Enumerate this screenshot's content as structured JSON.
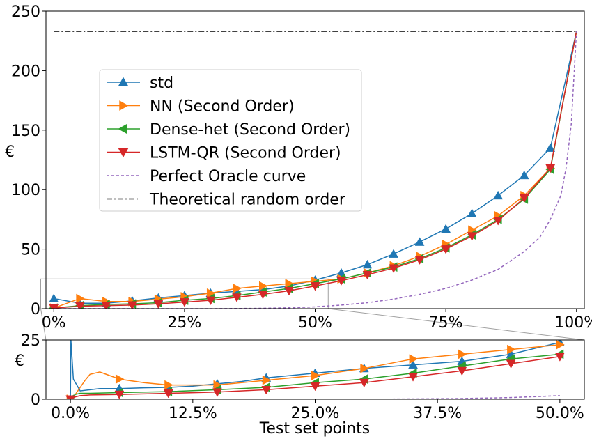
{
  "chart_data": [
    {
      "type": "line",
      "ylabel": "€",
      "xlabel": "",
      "xlim": [
        -1.5,
        101.5
      ],
      "ylim": [
        0,
        250
      ],
      "x_ticks": [
        0,
        25,
        50,
        75,
        100
      ],
      "x_tick_labels": [
        "0%",
        "25%",
        "50%",
        "75%",
        "100%"
      ],
      "y_ticks": [
        0,
        50,
        100,
        150,
        200,
        250
      ],
      "y_tick_labels": [
        "0",
        "50",
        "100",
        "150",
        "200",
        "250"
      ],
      "grid": false,
      "legend_position": "upper-left",
      "zoom_box": {
        "x": [
          -2.5,
          52.5
        ],
        "y": [
          0,
          25
        ]
      },
      "series": [
        {
          "name": "std",
          "color": "#1f77b4",
          "marker": "triangle-up",
          "x": [
            0,
            5,
            10,
            15,
            20,
            25,
            30,
            35,
            40,
            45,
            50,
            55,
            60,
            65,
            70,
            75,
            80,
            85,
            90,
            95,
            100
          ],
          "y": [
            8.5,
            4.5,
            4.5,
            6.5,
            9,
            11,
            13,
            14.5,
            16,
            19,
            24,
            30,
            37,
            46,
            56,
            67,
            80,
            95,
            112,
            135,
            233
          ]
        },
        {
          "name": "NN (Second Order)",
          "color": "#ff7f0e",
          "marker": "triangle-right",
          "x": [
            0,
            5,
            10,
            15,
            20,
            25,
            30,
            35,
            40,
            45,
            50,
            55,
            60,
            65,
            70,
            75,
            80,
            85,
            90,
            95,
            100
          ],
          "y": [
            0.5,
            8.5,
            6,
            6,
            8,
            10,
            13,
            17,
            19,
            21,
            23,
            25,
            30,
            36,
            44,
            54,
            66,
            78,
            95,
            118,
            233
          ]
        },
        {
          "name": "Dense-het (Second Order)",
          "color": "#2ca02c",
          "marker": "triangle-left",
          "x": [
            0,
            5,
            10,
            15,
            20,
            25,
            30,
            35,
            40,
            45,
            50,
            55,
            60,
            65,
            70,
            75,
            80,
            85,
            90,
            95,
            100
          ],
          "y": [
            0.5,
            2.5,
            3.5,
            4,
            5,
            7,
            8.5,
            11,
            14,
            17,
            21,
            25,
            30,
            35,
            42,
            51,
            62,
            75,
            92,
            117,
            233
          ]
        },
        {
          "name": "LSTM-QR (Second Order)",
          "color": "#d62728",
          "marker": "triangle-down",
          "x": [
            0,
            5,
            10,
            15,
            20,
            25,
            30,
            35,
            40,
            45,
            50,
            55,
            60,
            65,
            70,
            75,
            80,
            85,
            90,
            95,
            100
          ],
          "y": [
            0.5,
            2,
            2.5,
            3,
            4,
            5.5,
            7,
            9.5,
            12,
            15,
            19,
            23.5,
            28.5,
            34,
            41,
            50,
            61,
            74,
            93,
            118,
            233
          ]
        },
        {
          "name": "Perfect Oracle curve",
          "color": "#9467bd",
          "marker": "none",
          "x": [
            0,
            10,
            20,
            30,
            40,
            45,
            50,
            55,
            60,
            65,
            70,
            75,
            80,
            85,
            90,
            93,
            95,
            97,
            98,
            99,
            100
          ],
          "y": [
            0,
            0,
            0,
            0,
            0.3,
            0.7,
            1.5,
            3,
            5,
            8,
            12,
            17,
            24,
            33,
            48,
            60,
            75,
            95,
            118,
            155,
            233
          ]
        },
        {
          "name": "Theoretical random order",
          "color": "#000000",
          "marker": "none",
          "x": [
            0,
            100
          ],
          "y": [
            233,
            233
          ]
        }
      ]
    },
    {
      "type": "line",
      "ylabel": "€",
      "xlabel": "Test set points",
      "xlim": [
        -2.5,
        52.5
      ],
      "ylim": [
        0,
        25
      ],
      "x_ticks": [
        0,
        12.5,
        25,
        37.5,
        50
      ],
      "x_tick_labels": [
        "0.0%",
        "12.5%",
        "25.0%",
        "37.5%",
        "50.0%"
      ],
      "y_ticks": [
        0,
        25
      ],
      "y_tick_labels": [
        "0",
        "25"
      ],
      "grid": false,
      "series": [
        {
          "name": "std",
          "color": "#1f77b4",
          "marker": "triangle-up",
          "x": [
            0,
            0.05,
            0.3,
            1,
            2,
            3,
            5,
            7.5,
            10,
            12.5,
            15,
            17.5,
            20,
            25,
            30,
            35,
            40,
            45,
            50
          ],
          "y": [
            0,
            25,
            8.5,
            3.5,
            4,
            4.5,
            4.5,
            4.8,
            5,
            5.5,
            6.5,
            7.5,
            9,
            11,
            13,
            14.5,
            16,
            19,
            24
          ]
        },
        {
          "name": "NN (Second Order)",
          "color": "#ff7f0e",
          "marker": "triangle-right",
          "x": [
            0,
            0.5,
            1,
            1.5,
            2,
            3,
            4,
            5,
            7.5,
            10,
            12.5,
            15,
            20,
            25,
            30,
            35,
            40,
            45,
            50
          ],
          "y": [
            0,
            2,
            5,
            8,
            10.5,
            11.5,
            10,
            8.5,
            7,
            6,
            6,
            6,
            8,
            10,
            13,
            17,
            19,
            21,
            23
          ]
        },
        {
          "name": "Dense-het (Second Order)",
          "color": "#2ca02c",
          "marker": "triangle-left",
          "x": [
            0,
            0.5,
            1,
            2,
            5,
            10,
            15,
            20,
            25,
            30,
            35,
            40,
            45,
            50
          ],
          "y": [
            0,
            2,
            2.5,
            2.5,
            2.8,
            3.2,
            4,
            5,
            7,
            8.5,
            11,
            14,
            17,
            19
          ]
        },
        {
          "name": "LSTM-QR (Second Order)",
          "color": "#d62728",
          "marker": "triangle-down",
          "x": [
            0,
            0.5,
            1,
            2,
            5,
            10,
            15,
            20,
            25,
            30,
            35,
            40,
            45,
            50
          ],
          "y": [
            0,
            1,
            1.5,
            1.8,
            2,
            2.5,
            3,
            4,
            5.5,
            7,
            9.5,
            12,
            15,
            18
          ]
        },
        {
          "name": "Perfect Oracle curve",
          "color": "#9467bd",
          "marker": "none",
          "x": [
            0,
            10,
            20,
            30,
            40,
            45,
            50
          ],
          "y": [
            0,
            0,
            0,
            0,
            0.3,
            0.7,
            1.5
          ]
        }
      ]
    }
  ]
}
